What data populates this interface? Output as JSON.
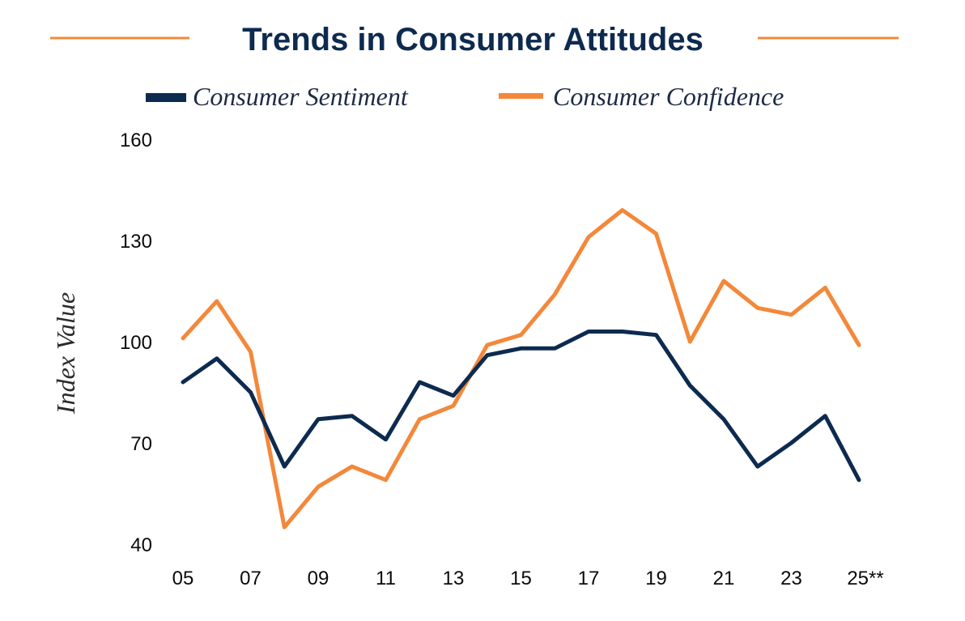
{
  "colors": {
    "sentiment": "#0d2a4f",
    "confidence": "#f3883b",
    "title": "#0d2a4f",
    "rule": "#f3883b"
  },
  "chart_data": {
    "type": "line",
    "title": "Trends in Consumer Attitudes",
    "xlabel": "",
    "ylabel": "Index Value",
    "categories": [
      "05",
      "06",
      "07",
      "08",
      "09",
      "10",
      "11",
      "12",
      "13",
      "14",
      "15",
      "16",
      "17",
      "18",
      "19",
      "20",
      "21",
      "22",
      "23",
      "24",
      "25**"
    ],
    "x_tick_labels": [
      "05",
      "07",
      "09",
      "11",
      "13",
      "15",
      "17",
      "19",
      "21",
      "23",
      "25**"
    ],
    "y_ticks": [
      40,
      70,
      100,
      130,
      160
    ],
    "ylim": [
      40,
      160
    ],
    "grid": false,
    "legend_position": "top",
    "series": [
      {
        "name": "Consumer Sentiment",
        "color": "#0d2a4f",
        "values": [
          88,
          95,
          85,
          63,
          77,
          78,
          71,
          88,
          84,
          96,
          98,
          98,
          103,
          103,
          102,
          87,
          77,
          63,
          70,
          78,
          59
        ]
      },
      {
        "name": "Consumer Confidence",
        "color": "#f3883b",
        "values": [
          101,
          112,
          97,
          45,
          57,
          63,
          59,
          77,
          81,
          99,
          102,
          114,
          131,
          139,
          132,
          100,
          118,
          110,
          108,
          116,
          99
        ]
      }
    ]
  }
}
